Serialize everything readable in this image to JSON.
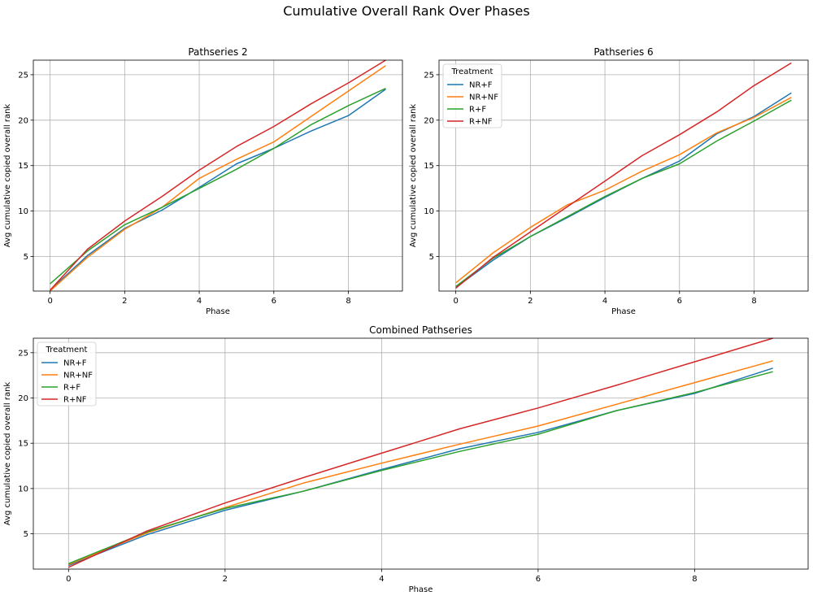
{
  "figure": {
    "title": "Cumulative Overall Rank Over Phases"
  },
  "colors": {
    "NR+F": "#1f77b4",
    "NR+NF": "#ff7f0e",
    "R+F": "#2ca02c",
    "R+NF": "#d62728"
  },
  "chart_data": [
    {
      "type": "line",
      "title": "Pathseries 2",
      "xlabel": "Phase",
      "ylabel": "Avg cumulative copied overall rank",
      "xlim": [
        -0.45,
        9.45
      ],
      "ylim": [
        1.2,
        26.6
      ],
      "xticks": [
        0,
        2,
        4,
        6,
        8
      ],
      "yticks": [
        5,
        10,
        15,
        20,
        25
      ],
      "grid": true,
      "legend": null,
      "x": [
        0,
        1,
        2,
        3,
        4,
        5,
        6,
        7,
        8,
        9
      ],
      "series": [
        {
          "name": "NR+F",
          "values": [
            1.3,
            5.1,
            8.1,
            10.1,
            12.6,
            15.2,
            16.9,
            18.8,
            20.5,
            23.4
          ]
        },
        {
          "name": "NR+NF",
          "values": [
            1.2,
            4.9,
            8.0,
            10.4,
            13.6,
            15.7,
            17.6,
            20.4,
            23.2,
            26.0
          ]
        },
        {
          "name": "R+F",
          "values": [
            2.0,
            5.6,
            8.5,
            10.4,
            12.5,
            14.6,
            16.9,
            19.5,
            21.6,
            23.5
          ]
        },
        {
          "name": "R+NF",
          "values": [
            1.3,
            5.8,
            8.9,
            11.6,
            14.5,
            17.1,
            19.3,
            21.8,
            24.1,
            26.6
          ]
        }
      ]
    },
    {
      "type": "line",
      "title": "Pathseries 6",
      "xlabel": "Phase",
      "ylabel": "Avg cumulative copied overall rank",
      "xlim": [
        -0.45,
        9.45
      ],
      "ylim": [
        1.2,
        26.6
      ],
      "xticks": [
        0,
        2,
        4,
        6,
        8
      ],
      "yticks": [
        5,
        10,
        15,
        20,
        25
      ],
      "grid": true,
      "legend": {
        "title": "Treatment",
        "position": "upper left"
      },
      "x": [
        0,
        1,
        2,
        3,
        4,
        5,
        6,
        7,
        8,
        9
      ],
      "series": [
        {
          "name": "NR+F",
          "values": [
            1.6,
            4.6,
            7.2,
            9.3,
            11.5,
            13.6,
            15.5,
            18.5,
            20.4,
            23.0
          ]
        },
        {
          "name": "NR+NF",
          "values": [
            2.1,
            5.4,
            8.2,
            10.7,
            12.3,
            14.4,
            16.2,
            18.6,
            20.3,
            22.5
          ]
        },
        {
          "name": "R+F",
          "values": [
            1.7,
            4.8,
            7.2,
            9.4,
            11.6,
            13.6,
            15.2,
            17.7,
            19.9,
            22.2
          ]
        },
        {
          "name": "R+NF",
          "values": [
            1.5,
            4.9,
            7.7,
            10.5,
            13.3,
            16.1,
            18.4,
            20.9,
            23.8,
            26.3
          ]
        }
      ]
    },
    {
      "type": "line",
      "title": "Combined Pathseries",
      "xlabel": "Phase",
      "ylabel": "Avg cumulative copied overall rank",
      "xlim": [
        -0.45,
        9.45
      ],
      "ylim": [
        1.1,
        26.6
      ],
      "xticks": [
        0,
        2,
        4,
        6,
        8
      ],
      "yticks": [
        5,
        10,
        15,
        20,
        25
      ],
      "grid": true,
      "legend": {
        "title": "Treatment",
        "position": "upper left"
      },
      "x": [
        0,
        1,
        2,
        3,
        4,
        5,
        6,
        7,
        8,
        9
      ],
      "series": [
        {
          "name": "NR+F",
          "values": [
            1.5,
            4.9,
            7.6,
            9.7,
            12.1,
            14.4,
            16.2,
            18.6,
            20.5,
            23.3
          ]
        },
        {
          "name": "NR+NF",
          "values": [
            1.6,
            5.1,
            7.9,
            10.6,
            12.8,
            14.9,
            16.9,
            19.3,
            21.7,
            24.1
          ]
        },
        {
          "name": "R+F",
          "values": [
            1.7,
            5.2,
            7.8,
            9.7,
            12.0,
            14.1,
            16.0,
            18.6,
            20.6,
            22.9
          ]
        },
        {
          "name": "R+NF",
          "values": [
            1.3,
            5.3,
            8.4,
            11.2,
            13.9,
            16.6,
            18.9,
            21.4,
            24.0,
            26.6
          ]
        }
      ]
    }
  ]
}
